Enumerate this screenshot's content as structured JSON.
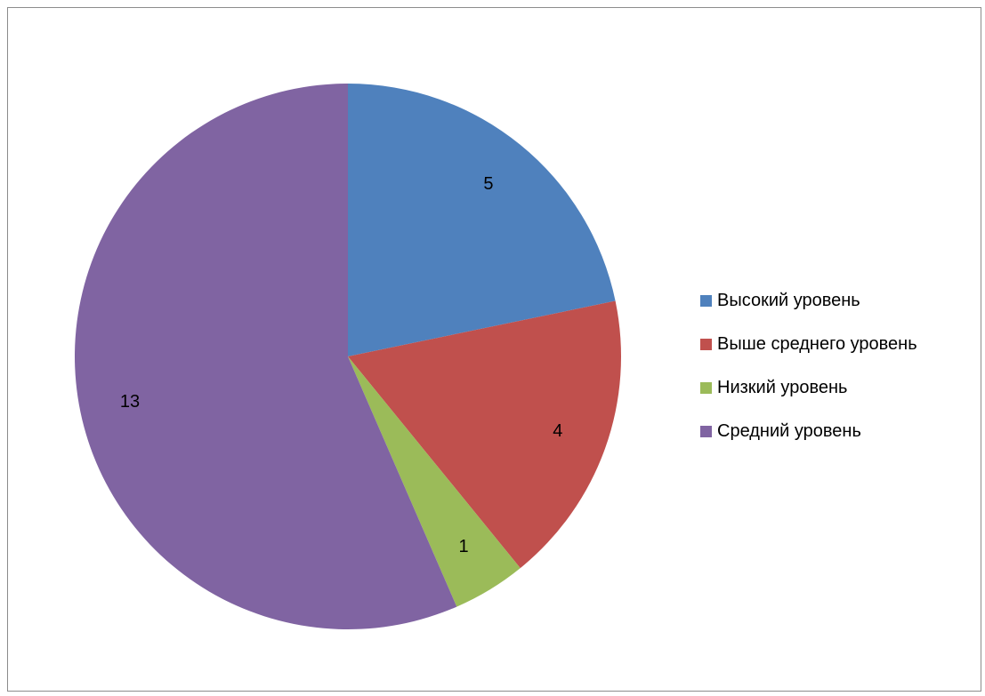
{
  "chart_data": {
    "type": "pie",
    "title": "",
    "categories": [
      "Высокий уровень",
      "Выше среднего уровень",
      "Низкий уровень",
      "Средний уровень"
    ],
    "values": [
      5,
      4,
      1,
      13
    ],
    "data_labels": [
      "5",
      "4",
      "1",
      "13"
    ],
    "colors": [
      "#4F81BD",
      "#C0504D",
      "#9BBB59",
      "#8064A2"
    ],
    "start_angle": "12 o'clock",
    "direction": "clockwise",
    "legend_position": "right"
  }
}
